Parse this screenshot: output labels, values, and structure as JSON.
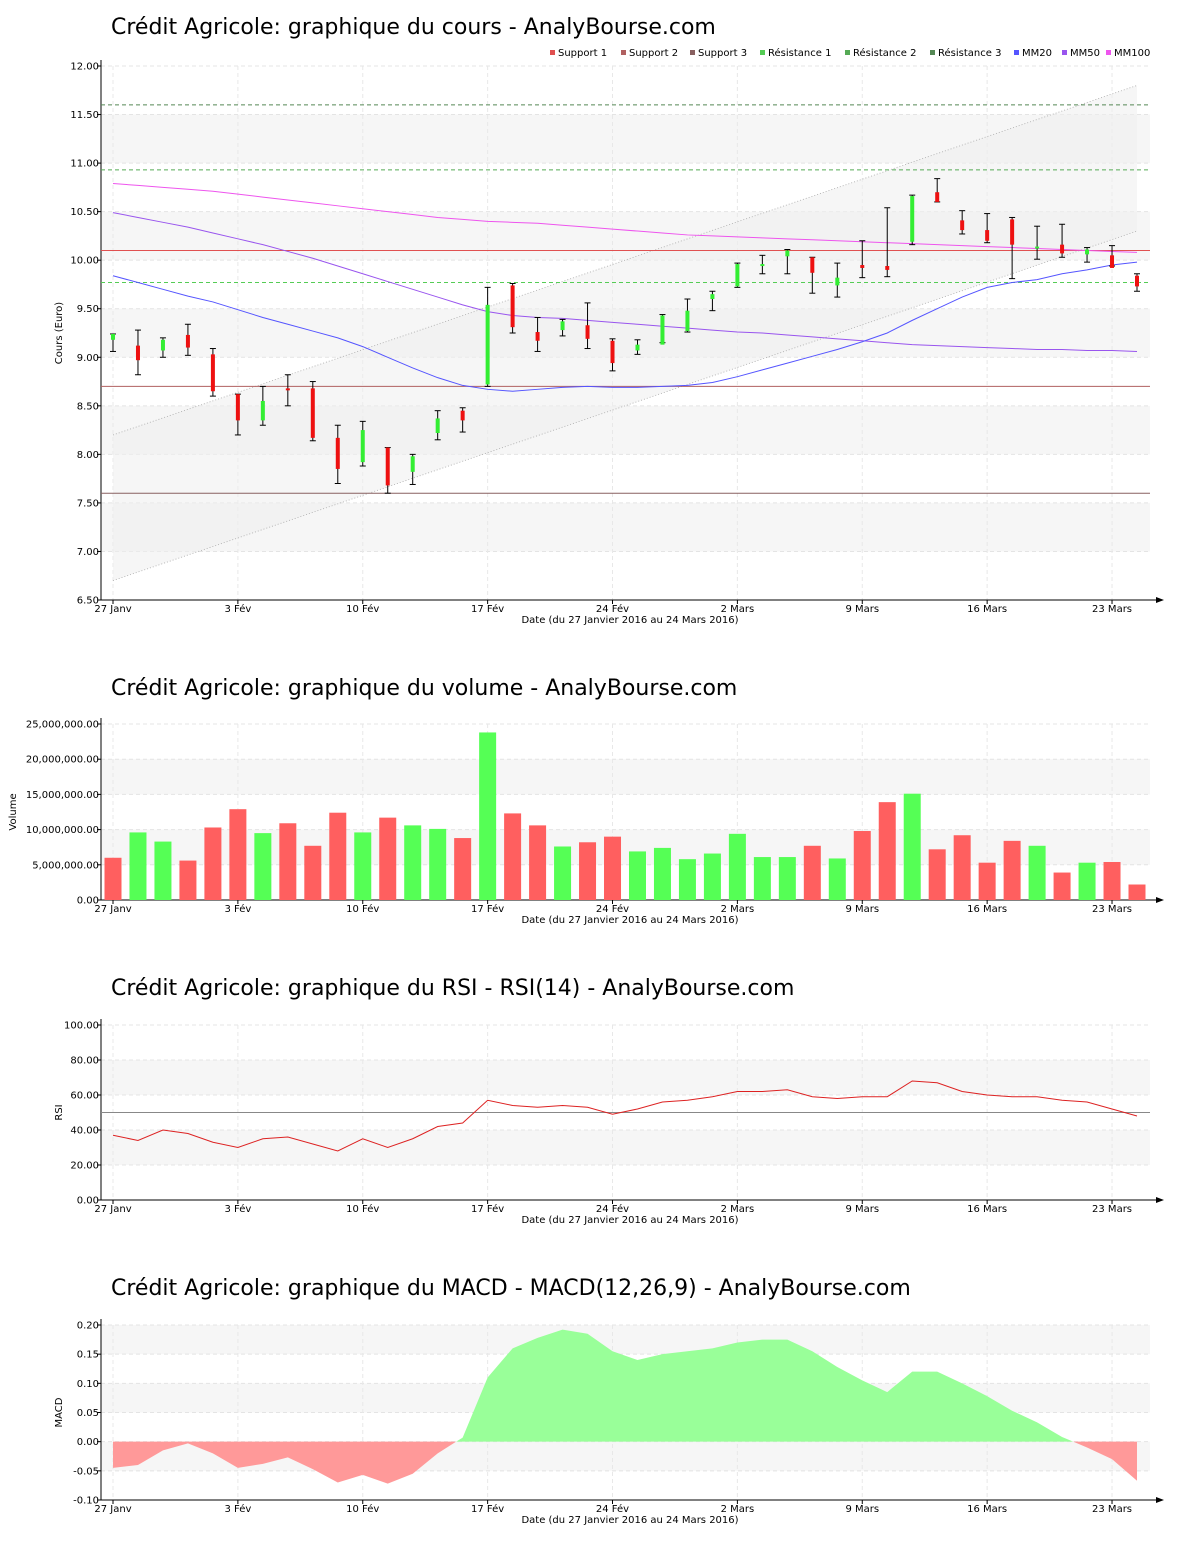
{
  "colors": {
    "up": "#33ee33",
    "down": "#ee1111",
    "vol_up": "#55ff55",
    "vol_down": "#ff5f5f",
    "support1": "#e05050",
    "support2": "#b06060",
    "support3": "#886060",
    "resistance1": "#55cc55",
    "resistance2": "#55aa55",
    "resistance3": "#558855",
    "mm20": "#5555ff",
    "mm50": "#9955ee",
    "mm100": "#ee55ee",
    "rsi_line": "#dd2222",
    "macd_pos": "#99ff99",
    "macd_neg": "#ff9999"
  },
  "x_labels": [
    "27 Janv",
    "3 Fév",
    "10 Fév",
    "17 Fév",
    "24 Fév",
    "2 Mars",
    "9 Mars",
    "16 Mars",
    "23 Mars"
  ],
  "x_label_index": [
    0,
    5,
    10,
    15,
    20,
    25,
    30,
    35,
    40
  ],
  "date_range_label": "Date (du 27 Janvier 2016 au 24 Mars 2016)",
  "chart_data": [
    {
      "type": "candlestick",
      "title": "Crédit Agricole: graphique du cours - AnalyBourse.com",
      "ylabel": "Cours (Euro)",
      "ylim": [
        6.5,
        12.0
      ],
      "yticks": [
        "6.50",
        "7.00",
        "7.50",
        "8.00",
        "8.50",
        "9.00",
        "9.50",
        "10.00",
        "10.50",
        "11.00",
        "11.50",
        "12.00"
      ],
      "legend": [
        "Support 1",
        "Support 2",
        "Support 3",
        "Résistance 1",
        "Résistance 2",
        "Résistance 3",
        "MM20",
        "MM50",
        "MM100"
      ],
      "legend_position": "top-right",
      "supports": [
        10.1,
        8.7,
        7.6
      ],
      "resistances": [
        9.77,
        10.93,
        11.6
      ],
      "ohlc": [
        [
          9.18,
          9.24,
          9.06,
          9.24
        ],
        [
          9.12,
          9.28,
          8.82,
          8.97
        ],
        [
          9.07,
          9.2,
          9.0,
          9.18
        ],
        [
          9.23,
          9.34,
          9.02,
          9.1
        ],
        [
          9.03,
          9.09,
          8.6,
          8.65
        ],
        [
          8.62,
          8.62,
          8.2,
          8.35
        ],
        [
          8.35,
          8.7,
          8.3,
          8.55
        ],
        [
          8.68,
          8.82,
          8.5,
          8.66
        ],
        [
          8.68,
          8.75,
          8.14,
          8.17
        ],
        [
          8.17,
          8.3,
          7.7,
          7.85
        ],
        [
          7.92,
          8.34,
          7.88,
          8.25
        ],
        [
          8.07,
          8.07,
          7.6,
          7.68
        ],
        [
          7.82,
          8.0,
          7.69,
          7.98
        ],
        [
          8.22,
          8.45,
          8.15,
          8.37
        ],
        [
          8.45,
          8.48,
          8.23,
          8.35
        ],
        [
          8.72,
          9.72,
          8.7,
          9.54
        ],
        [
          9.74,
          9.76,
          9.25,
          9.31
        ],
        [
          9.26,
          9.41,
          9.06,
          9.17
        ],
        [
          9.28,
          9.39,
          9.22,
          9.37
        ],
        [
          9.33,
          9.56,
          9.09,
          9.19
        ],
        [
          9.17,
          9.19,
          8.86,
          8.94
        ],
        [
          9.07,
          9.18,
          9.03,
          9.13
        ],
        [
          9.13,
          9.44,
          9.15,
          9.43
        ],
        [
          9.27,
          9.6,
          9.26,
          9.48
        ],
        [
          9.6,
          9.68,
          9.48,
          9.65
        ],
        [
          9.73,
          9.97,
          9.72,
          9.96
        ],
        [
          9.94,
          10.05,
          9.86,
          9.96
        ],
        [
          10.04,
          10.11,
          9.86,
          10.1
        ],
        [
          10.03,
          10.03,
          9.66,
          9.87
        ],
        [
          9.74,
          9.97,
          9.62,
          9.82
        ],
        [
          9.95,
          10.2,
          9.82,
          9.92
        ],
        [
          9.94,
          10.54,
          9.83,
          9.9
        ],
        [
          10.19,
          10.67,
          10.16,
          10.66
        ],
        [
          10.7,
          10.84,
          10.6,
          10.6
        ],
        [
          10.41,
          10.51,
          10.27,
          10.31
        ],
        [
          10.31,
          10.48,
          10.18,
          10.2
        ],
        [
          10.42,
          10.44,
          9.81,
          10.16
        ],
        [
          10.12,
          10.35,
          10.01,
          10.14
        ],
        [
          10.16,
          10.37,
          10.03,
          10.07
        ],
        [
          10.06,
          10.13,
          9.98,
          10.11
        ],
        [
          10.05,
          10.15,
          9.94,
          9.92
        ],
        [
          9.84,
          9.86,
          9.68,
          9.73
        ]
      ],
      "mm20": [
        9.84,
        9.77,
        9.7,
        9.63,
        9.57,
        9.49,
        9.41,
        9.34,
        9.27,
        9.2,
        9.11,
        9.0,
        8.89,
        8.79,
        8.71,
        8.67,
        8.65,
        8.67,
        8.69,
        8.7,
        8.69,
        8.69,
        8.7,
        8.71,
        8.74,
        8.8,
        8.87,
        8.94,
        9.01,
        9.08,
        9.16,
        9.25,
        9.38,
        9.5,
        9.62,
        9.72,
        9.77,
        9.8,
        9.86,
        9.9,
        9.95,
        9.98
      ],
      "mm50": [
        10.49,
        10.44,
        10.39,
        10.34,
        10.28,
        10.22,
        10.16,
        10.09,
        10.02,
        9.94,
        9.86,
        9.78,
        9.7,
        9.62,
        9.54,
        9.47,
        9.43,
        9.41,
        9.4,
        9.38,
        9.36,
        9.34,
        9.32,
        9.3,
        9.28,
        9.26,
        9.25,
        9.23,
        9.21,
        9.19,
        9.17,
        9.15,
        9.13,
        9.12,
        9.11,
        9.1,
        9.09,
        9.08,
        9.08,
        9.07,
        9.07,
        9.06
      ],
      "mm100": [
        10.79,
        10.77,
        10.75,
        10.73,
        10.71,
        10.68,
        10.65,
        10.62,
        10.59,
        10.56,
        10.53,
        10.5,
        10.47,
        10.44,
        10.42,
        10.4,
        10.39,
        10.38,
        10.36,
        10.34,
        10.32,
        10.3,
        10.28,
        10.26,
        10.25,
        10.24,
        10.23,
        10.22,
        10.21,
        10.2,
        10.19,
        10.18,
        10.17,
        10.16,
        10.15,
        10.14,
        10.13,
        10.12,
        10.11,
        10.1,
        10.09,
        10.08
      ],
      "channel_upper": [
        8.2,
        11.8
      ],
      "channel_lower": [
        6.7,
        10.3
      ]
    },
    {
      "type": "bar",
      "title": "Crédit Agricole: graphique du volume - AnalyBourse.com",
      "ylabel": "Volume",
      "ylim": [
        0,
        25000000
      ],
      "yticks": [
        "0.00",
        "5,000,000.00",
        "10,000,000.00",
        "15,000,000.00",
        "20,000,000.00",
        "25,000,000.00"
      ],
      "values": [
        6000000,
        9600000,
        8300000,
        5600000,
        10300000,
        12900000,
        9500000,
        10900000,
        7700000,
        12400000,
        9600000,
        11700000,
        10600000,
        10100000,
        8800000,
        23800000,
        12300000,
        10600000,
        7600000,
        8200000,
        9000000,
        6900000,
        7400000,
        5800000,
        6600000,
        9400000,
        6100000,
        6100000,
        7700000,
        5900000,
        9800000,
        13900000,
        15100000,
        7200000,
        9200000,
        5300000,
        8400000,
        7700000,
        3900000,
        5300000,
        5400000,
        2200000
      ],
      "up": [
        0,
        1,
        1,
        0,
        0,
        0,
        1,
        0,
        0,
        0,
        1,
        0,
        1,
        1,
        0,
        1,
        0,
        0,
        1,
        0,
        0,
        1,
        1,
        1,
        1,
        1,
        1,
        1,
        0,
        1,
        0,
        0,
        1,
        0,
        0,
        0,
        0,
        1,
        0,
        1,
        0,
        0
      ]
    },
    {
      "type": "line",
      "title": "Crédit Agricole: graphique du RSI - RSI(14) - AnalyBourse.com",
      "ylabel": "RSI",
      "ylim": [
        0,
        100
      ],
      "yticks": [
        "0.00",
        "20.00",
        "40.00",
        "60.00",
        "80.00",
        "100.00"
      ],
      "reference": 50,
      "values": [
        37,
        34,
        40,
        38,
        33,
        30,
        35,
        36,
        32,
        28,
        35,
        30,
        35,
        42,
        44,
        57,
        54,
        53,
        54,
        53,
        49,
        52,
        56,
        57,
        59,
        62,
        62,
        63,
        59,
        58,
        59,
        59,
        68,
        67,
        62,
        60,
        59,
        59,
        57,
        56,
        52,
        48
      ]
    },
    {
      "type": "area",
      "title": "Crédit Agricole: graphique du MACD - MACD(12,26,9) - AnalyBourse.com",
      "ylabel": "MACD",
      "ylim": [
        -0.1,
        0.2
      ],
      "yticks": [
        "-0.10",
        "-0.05",
        "0.00",
        "0.05",
        "0.10",
        "0.15",
        "0.20"
      ],
      "values": [
        -0.045,
        -0.04,
        -0.015,
        -0.003,
        -0.02,
        -0.045,
        -0.038,
        -0.027,
        -0.047,
        -0.07,
        -0.057,
        -0.072,
        -0.055,
        -0.02,
        0.007,
        0.11,
        0.16,
        0.178,
        0.192,
        0.185,
        0.155,
        0.14,
        0.15,
        0.155,
        0.16,
        0.17,
        0.175,
        0.175,
        0.155,
        0.128,
        0.105,
        0.085,
        0.12,
        0.12,
        0.1,
        0.078,
        0.053,
        0.033,
        0.008,
        -0.01,
        -0.03,
        -0.067
      ]
    }
  ]
}
